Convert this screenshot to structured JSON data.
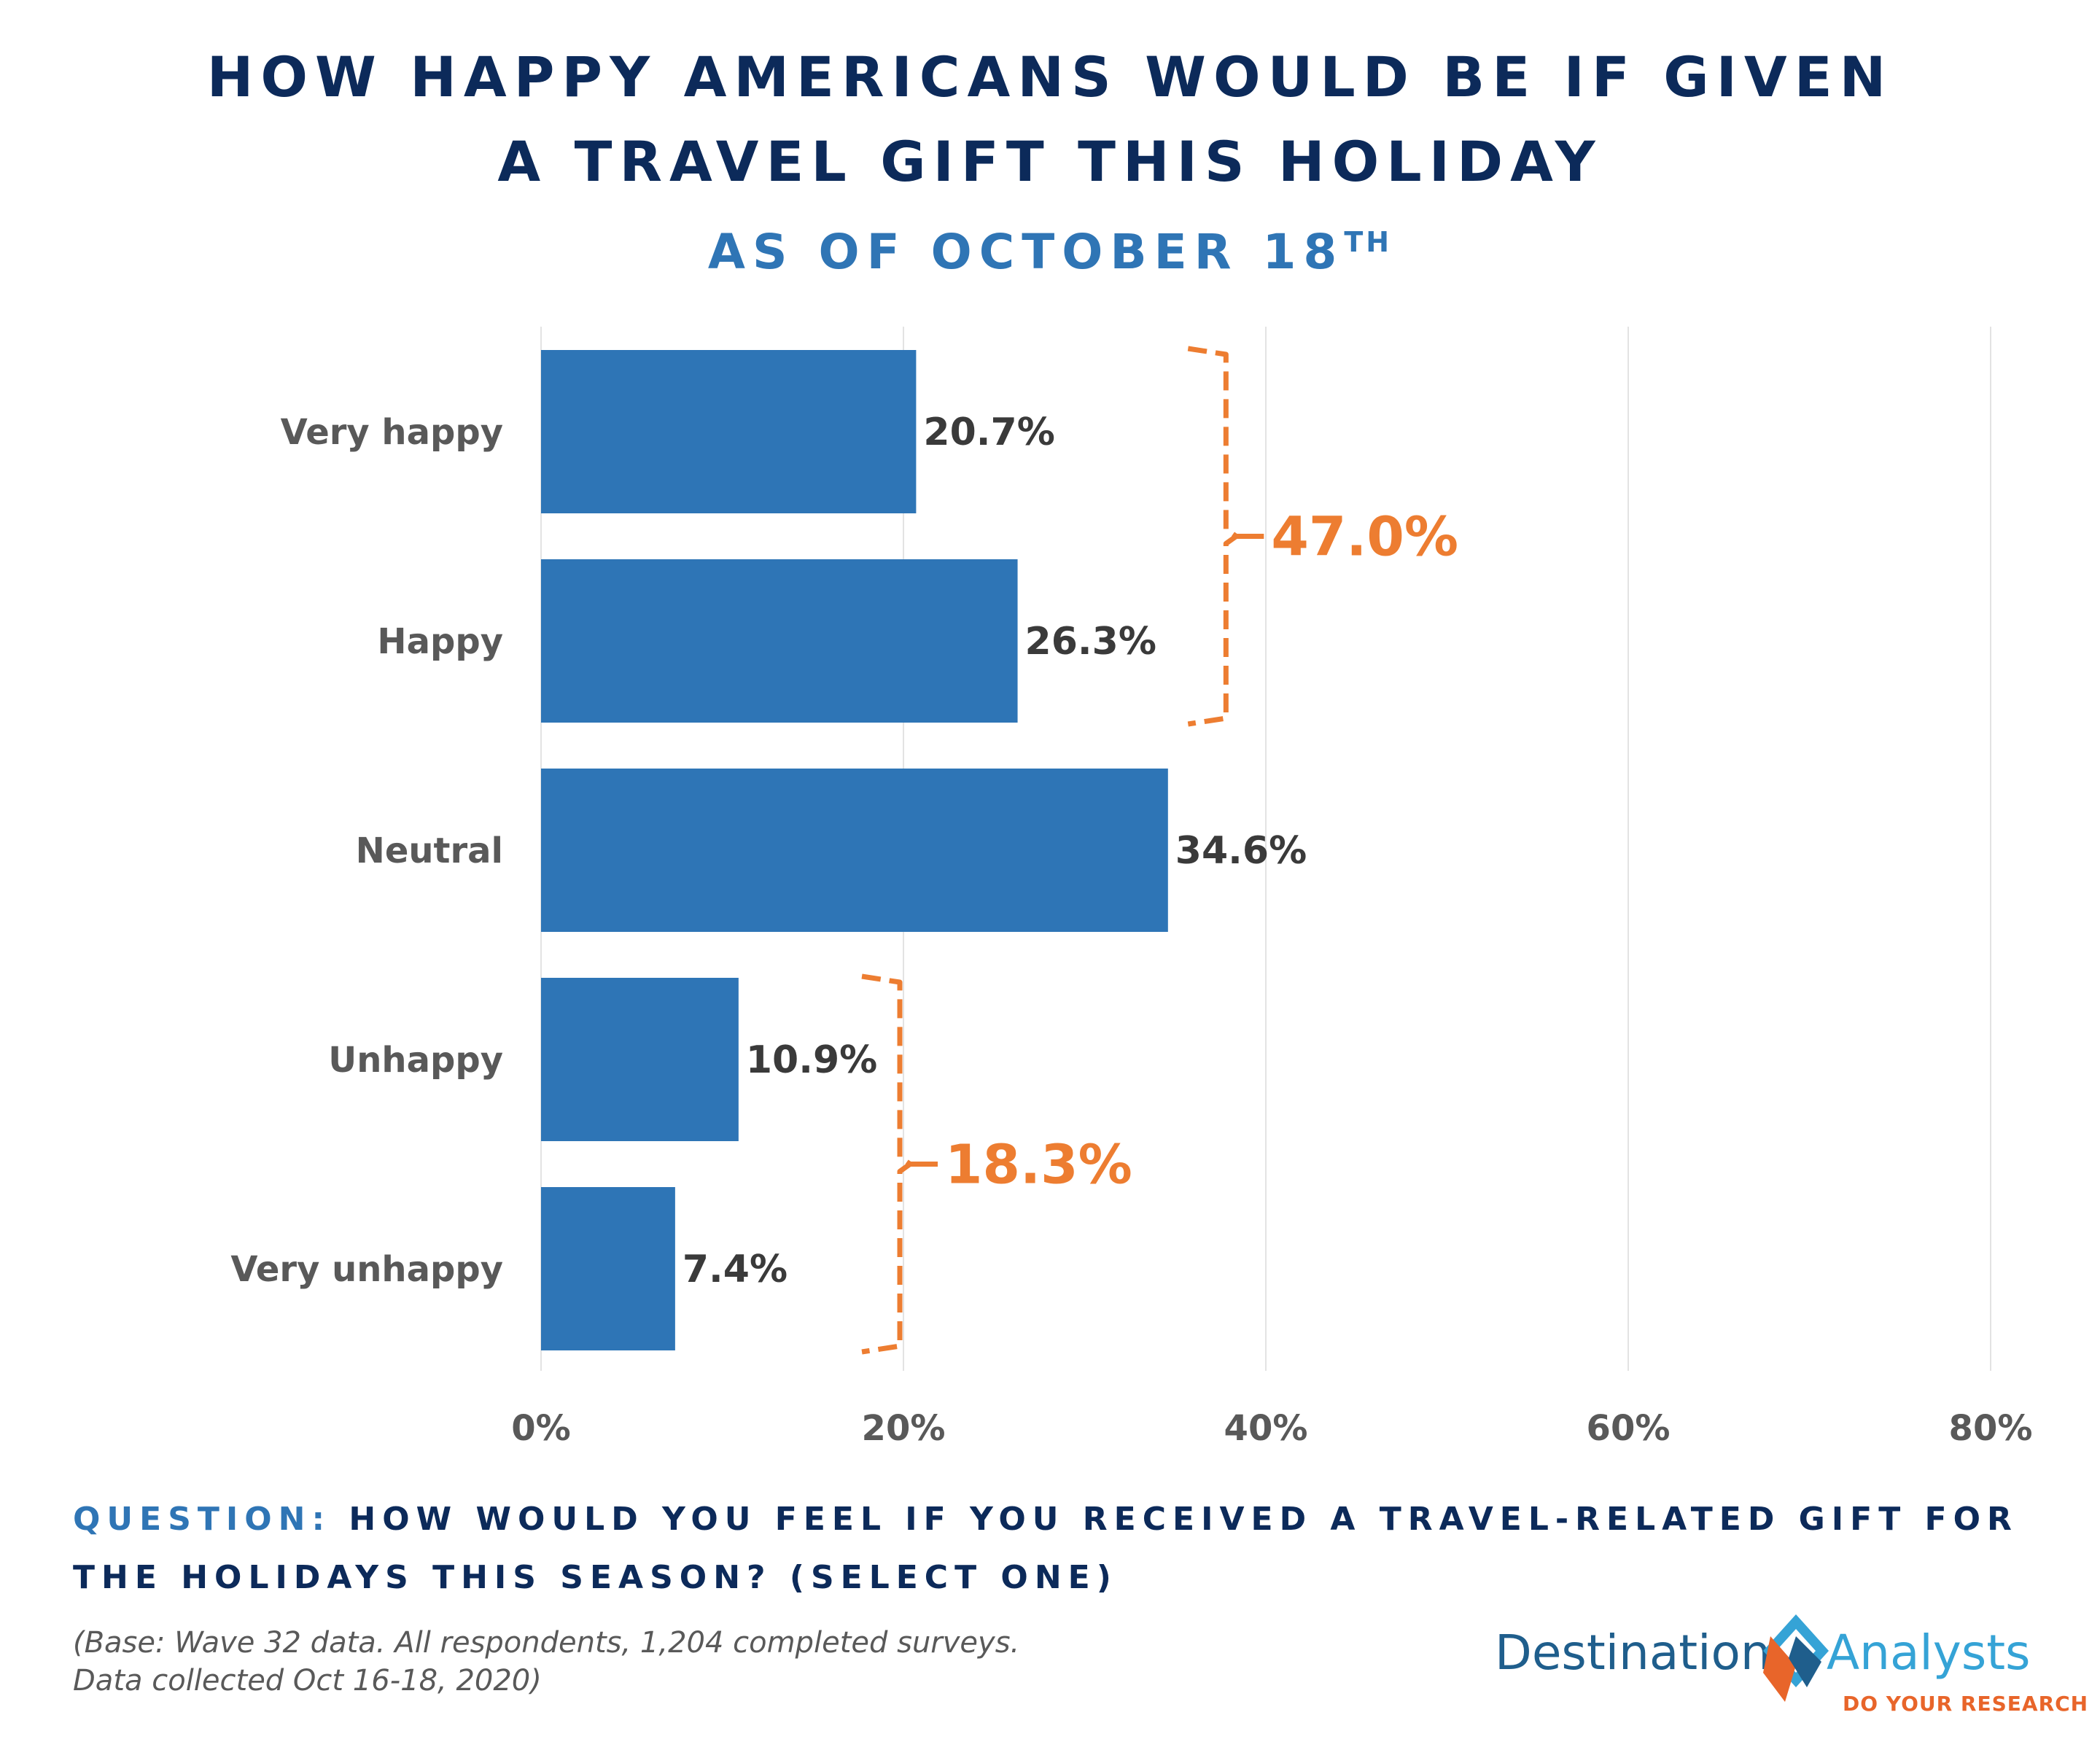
{
  "header": {
    "title_line_1": "HOW HAPPY AMERICANS WOULD BE IF GIVEN",
    "title_line_2": "A TRAVEL GIFT THIS HOLIDAY",
    "subtitle": "AS OF OCTOBER 18",
    "subtitle_sup": "TH"
  },
  "chart_data": {
    "type": "bar",
    "orientation": "horizontal",
    "categories": [
      "Very happy",
      "Happy",
      "Neutral",
      "Unhappy",
      "Very unhappy"
    ],
    "values": [
      20.7,
      26.3,
      34.6,
      10.9,
      7.4
    ],
    "value_labels": [
      "20.7%",
      "26.3%",
      "34.6%",
      "10.9%",
      "7.4%"
    ],
    "xlim": [
      0,
      80
    ],
    "x_ticks": [
      0,
      20,
      40,
      60,
      80
    ],
    "x_tick_labels": [
      "0%",
      "20%",
      "40%",
      "60%",
      "80%"
    ],
    "grid": true,
    "bar_color": "#2e75b6",
    "groups": [
      {
        "label": "47.0%",
        "value": 47.0,
        "categories": [
          "Very happy",
          "Happy"
        ],
        "color": "#ed7d31"
      },
      {
        "label": "18.3%",
        "value": 18.3,
        "categories": [
          "Unhappy",
          "Very unhappy"
        ],
        "color": "#ed7d31"
      }
    ]
  },
  "footer": {
    "question_prefix": "QUESTION:",
    "question_text": " HOW WOULD YOU FEEL IF YOU RECEIVED A TRAVEL-RELATED GIFT FOR THE HOLIDAYS THIS SEASON?  (SELECT ONE)",
    "note_line_1": "(Base: Wave 32 data. All respondents, 1,204 completed surveys.",
    "note_line_2": "Data collected Oct 16-18, 2020)"
  },
  "logo": {
    "word_1": "Destination",
    "word_2": "Analysts",
    "tagline": "DO YOUR RESEARCH"
  }
}
